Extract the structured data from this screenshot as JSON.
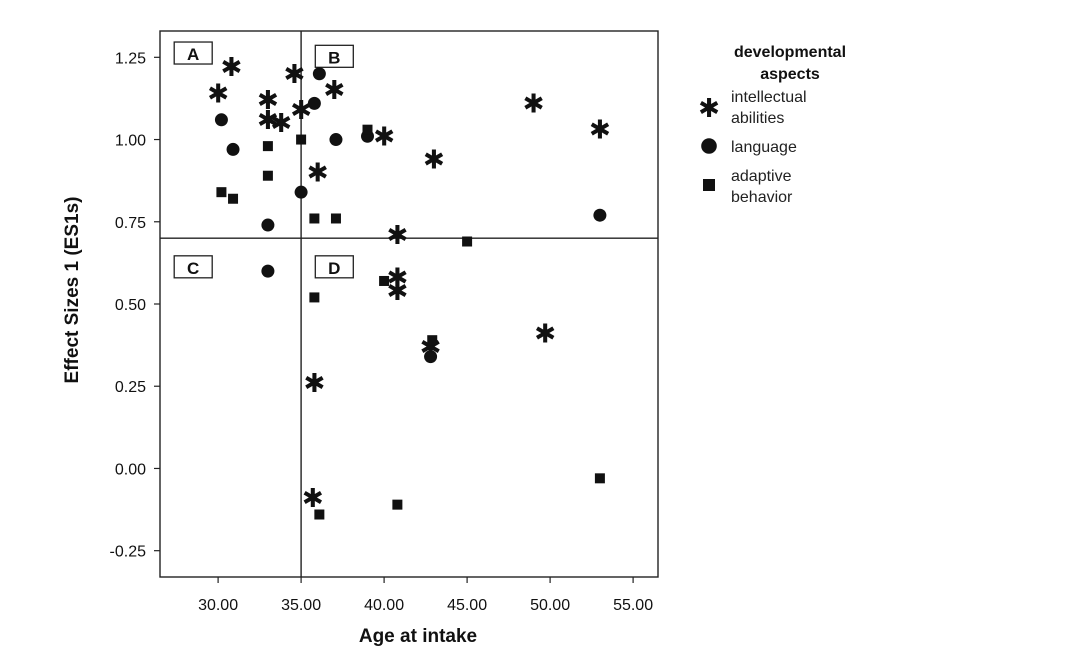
{
  "chart_data": {
    "type": "scatter",
    "xlabel": "Age at intake",
    "ylabel": "Effect Sizes 1 (ES1s)",
    "xlim": [
      26.5,
      56.5
    ],
    "ylim": [
      -0.33,
      1.33
    ],
    "x_ticks": [
      "30.00",
      "35.00",
      "40.00",
      "45.00",
      "50.00",
      "55.00"
    ],
    "x_tick_values": [
      30,
      35,
      40,
      45,
      50,
      55
    ],
    "y_ticks": [
      "1.25",
      "1.00",
      "0.75",
      "0.50",
      "0.25",
      "0.00",
      "-0.25"
    ],
    "y_tick_values": [
      1.25,
      1.0,
      0.75,
      0.5,
      0.25,
      0.0,
      -0.25
    ],
    "reference_lines": {
      "x": 35,
      "y": 0.7
    },
    "quadrants": [
      {
        "label": "A",
        "x": 28.5,
        "y": 1.26
      },
      {
        "label": "B",
        "x": 37.0,
        "y": 1.25
      },
      {
        "label": "C",
        "x": 28.5,
        "y": 0.61
      },
      {
        "label": "D",
        "x": 37.0,
        "y": 0.61
      }
    ],
    "legend": {
      "title_line1": "developmental",
      "title_line2": "aspects",
      "entries": [
        {
          "line1": "intellectual",
          "line2": "abilities",
          "marker": "star"
        },
        {
          "line1": "language",
          "line2": "",
          "marker": "circle"
        },
        {
          "line1": "adaptive",
          "line2": "behavior",
          "marker": "square"
        }
      ]
    },
    "series": [
      {
        "name": "intellectual abilities",
        "marker": "star",
        "points": [
          [
            30.0,
            1.14
          ],
          [
            30.8,
            1.22
          ],
          [
            33.0,
            1.12
          ],
          [
            33.0,
            1.06
          ],
          [
            33.8,
            1.05
          ],
          [
            34.6,
            1.2
          ],
          [
            35.0,
            1.09
          ],
          [
            36.0,
            0.9
          ],
          [
            37.0,
            1.15
          ],
          [
            40.0,
            1.01
          ],
          [
            43.0,
            0.94
          ],
          [
            49.0,
            1.11
          ],
          [
            53.0,
            1.03
          ],
          [
            40.8,
            0.71
          ],
          [
            40.8,
            0.58
          ],
          [
            40.8,
            0.54
          ],
          [
            42.8,
            0.37
          ],
          [
            49.7,
            0.41
          ],
          [
            35.8,
            0.26
          ],
          [
            35.7,
            -0.09
          ]
        ]
      },
      {
        "name": "language",
        "marker": "circle",
        "points": [
          [
            30.2,
            1.06
          ],
          [
            30.9,
            0.97
          ],
          [
            33.0,
            0.74
          ],
          [
            33.0,
            0.6
          ],
          [
            35.0,
            0.84
          ],
          [
            35.8,
            1.11
          ],
          [
            36.1,
            1.2
          ],
          [
            37.1,
            1.0
          ],
          [
            39.0,
            1.01
          ],
          [
            42.8,
            0.34
          ],
          [
            53.0,
            0.77
          ]
        ]
      },
      {
        "name": "adaptive behavior",
        "marker": "square",
        "points": [
          [
            30.2,
            0.84
          ],
          [
            30.9,
            0.82
          ],
          [
            33.0,
            0.98
          ],
          [
            33.0,
            0.89
          ],
          [
            35.0,
            1.0
          ],
          [
            35.8,
            0.76
          ],
          [
            37.1,
            0.76
          ],
          [
            39.0,
            1.03
          ],
          [
            45.0,
            0.69
          ],
          [
            40.0,
            0.57
          ],
          [
            35.8,
            0.52
          ],
          [
            42.9,
            0.39
          ],
          [
            36.1,
            -0.14
          ],
          [
            40.8,
            -0.11
          ],
          [
            53.0,
            -0.03
          ]
        ]
      }
    ]
  }
}
